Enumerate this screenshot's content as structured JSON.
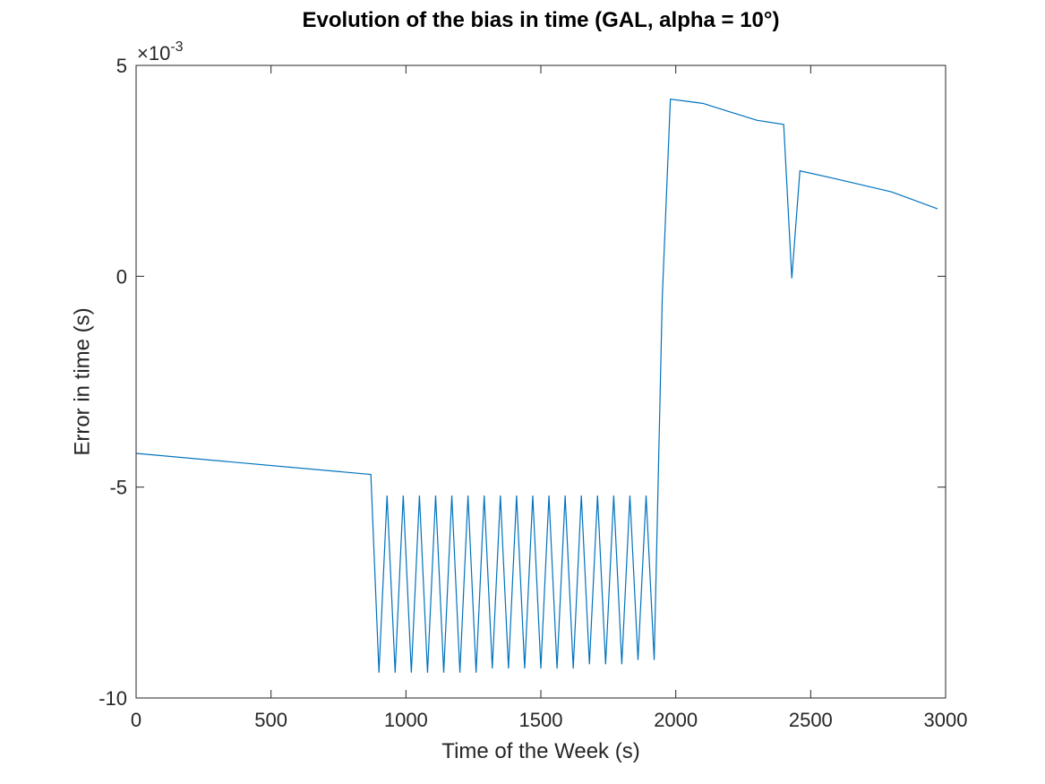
{
  "chart_data": {
    "type": "line",
    "title": "Evolution of the bias in time (GAL, alpha = 10°)",
    "xlabel": "Time of the Week (s)",
    "ylabel": "Error in time (s)",
    "xlim": [
      0,
      3000
    ],
    "ylim": [
      -0.01,
      0.005
    ],
    "x_ticks": [
      0,
      500,
      1000,
      1500,
      2000,
      2500,
      3000
    ],
    "x_tick_labels": [
      "0",
      "500",
      "1000",
      "1500",
      "2000",
      "2500",
      "3000"
    ],
    "y_ticks": [
      -0.01,
      -0.005,
      0,
      0.005
    ],
    "y_tick_labels": [
      "-10",
      "-5",
      "0",
      "5"
    ],
    "y_exponent_base": "×10",
    "y_exponent_power": "-3",
    "grid": false,
    "box": true,
    "series": [
      {
        "color": "#0072bd",
        "x": [
          0,
          870,
          900,
          930,
          960,
          990,
          1020,
          1050,
          1080,
          1110,
          1140,
          1170,
          1200,
          1230,
          1260,
          1290,
          1320,
          1350,
          1380,
          1410,
          1440,
          1470,
          1500,
          1530,
          1560,
          1590,
          1620,
          1650,
          1680,
          1710,
          1740,
          1770,
          1800,
          1830,
          1860,
          1890,
          1920,
          1950,
          1980,
          2100,
          2200,
          2300,
          2400,
          2430,
          2460,
          2600,
          2800,
          2970
        ],
        "y": [
          -0.0042,
          -0.0047,
          -0.0094,
          -0.0052,
          -0.0094,
          -0.0052,
          -0.0094,
          -0.0052,
          -0.0094,
          -0.0052,
          -0.0094,
          -0.0052,
          -0.0094,
          -0.0052,
          -0.0094,
          -0.0052,
          -0.0093,
          -0.0052,
          -0.0093,
          -0.0052,
          -0.0093,
          -0.0052,
          -0.0093,
          -0.0052,
          -0.0093,
          -0.0052,
          -0.0093,
          -0.0052,
          -0.0092,
          -0.0052,
          -0.0092,
          -0.0052,
          -0.0092,
          -0.0052,
          -0.0091,
          -0.0052,
          -0.0091,
          -0.0005,
          0.0042,
          0.0041,
          0.0039,
          0.0037,
          0.0036,
          -5e-05,
          0.0025,
          0.0023,
          0.002,
          0.0016
        ]
      }
    ]
  }
}
